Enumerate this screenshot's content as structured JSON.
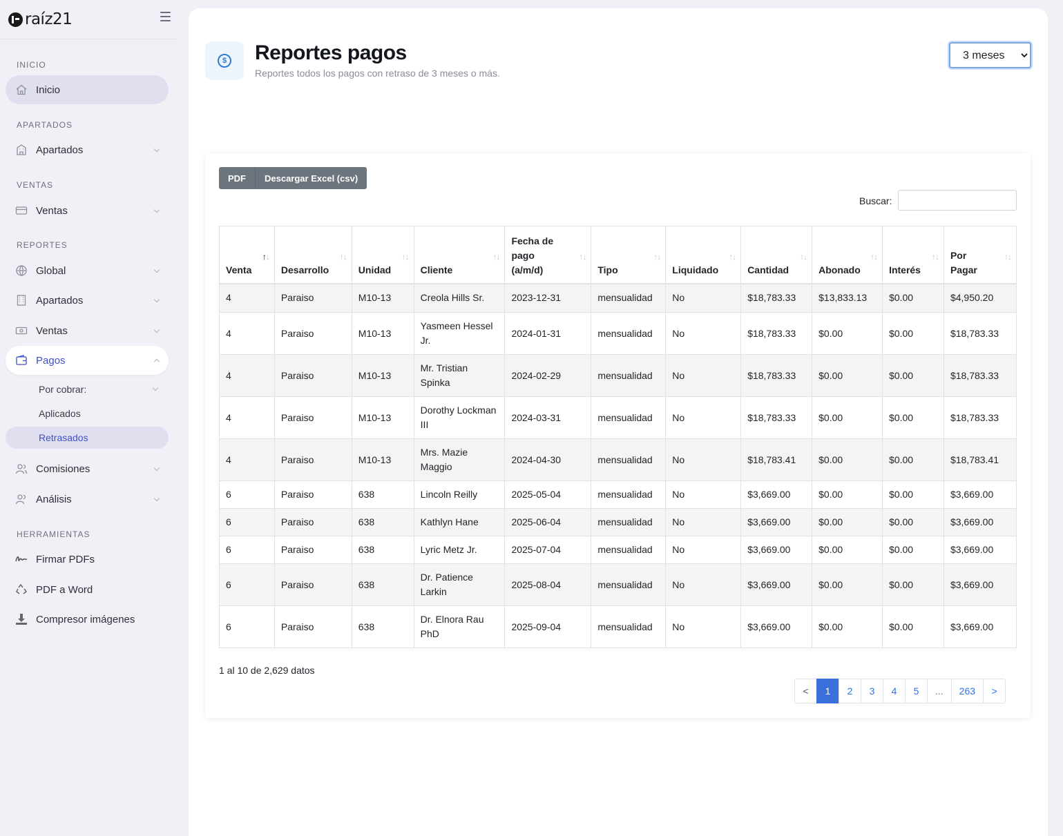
{
  "brand": {
    "name": "raíz21"
  },
  "sidebar": {
    "sections": {
      "inicio": "INICIO",
      "apartados": "APARTADOS",
      "ventas": "VENTAS",
      "reportes": "REPORTES",
      "herramientas": "HERRAMIENTAS"
    },
    "items": {
      "inicio": "Inicio",
      "apartados": "Apartados",
      "ventas": "Ventas",
      "global": "Global",
      "rep_apartados": "Apartados",
      "rep_ventas": "Ventas",
      "pagos": "Pagos",
      "por_cobrar": "Por cobrar:",
      "aplicados": "Aplicados",
      "retrasados": "Retrasados",
      "comisiones": "Comisiones",
      "analisis": "Análisis",
      "firmar_pdfs": "Firmar PDFs",
      "pdf_word": "PDF a Word",
      "compresor": "Compresor imágenes"
    }
  },
  "header": {
    "title": "Reportes pagos",
    "subtitle": "Reportes todos los pagos con retraso de 3 meses o más.",
    "period_select": "3 meses"
  },
  "toolbar": {
    "pdf_label": "PDF",
    "csv_label": "Descargar Excel (csv)",
    "search_label": "Buscar:"
  },
  "table": {
    "columns": [
      "Venta",
      "Desarrollo",
      "Unidad",
      "Cliente",
      "Fecha de pago (a/m/d)",
      "Tipo",
      "Liquidado",
      "Cantidad",
      "Abonado",
      "Interés",
      "Por Pagar"
    ],
    "rows": [
      [
        "4",
        "Paraiso",
        "M10-13",
        "Creola Hills Sr.",
        "2023-12-31",
        "mensualidad",
        "No",
        "$18,783.33",
        "$13,833.13",
        "$0.00",
        "$4,950.20"
      ],
      [
        "4",
        "Paraiso",
        "M10-13",
        "Yasmeen Hessel Jr.",
        "2024-01-31",
        "mensualidad",
        "No",
        "$18,783.33",
        "$0.00",
        "$0.00",
        "$18,783.33"
      ],
      [
        "4",
        "Paraiso",
        "M10-13",
        "Mr. Tristian Spinka",
        "2024-02-29",
        "mensualidad",
        "No",
        "$18,783.33",
        "$0.00",
        "$0.00",
        "$18,783.33"
      ],
      [
        "4",
        "Paraiso",
        "M10-13",
        "Dorothy Lockman III",
        "2024-03-31",
        "mensualidad",
        "No",
        "$18,783.33",
        "$0.00",
        "$0.00",
        "$18,783.33"
      ],
      [
        "4",
        "Paraiso",
        "M10-13",
        "Mrs. Mazie Maggio",
        "2024-04-30",
        "mensualidad",
        "No",
        "$18,783.41",
        "$0.00",
        "$0.00",
        "$18,783.41"
      ],
      [
        "6",
        "Paraiso",
        "638",
        "Lincoln Reilly",
        "2025-05-04",
        "mensualidad",
        "No",
        "$3,669.00",
        "$0.00",
        "$0.00",
        "$3,669.00"
      ],
      [
        "6",
        "Paraiso",
        "638",
        "Kathlyn Hane",
        "2025-06-04",
        "mensualidad",
        "No",
        "$3,669.00",
        "$0.00",
        "$0.00",
        "$3,669.00"
      ],
      [
        "6",
        "Paraiso",
        "638",
        "Lyric Metz Jr.",
        "2025-07-04",
        "mensualidad",
        "No",
        "$3,669.00",
        "$0.00",
        "$0.00",
        "$3,669.00"
      ],
      [
        "6",
        "Paraiso",
        "638",
        "Dr. Patience Larkin",
        "2025-08-04",
        "mensualidad",
        "No",
        "$3,669.00",
        "$0.00",
        "$0.00",
        "$3,669.00"
      ],
      [
        "6",
        "Paraiso",
        "638",
        "Dr. Elnora Rau PhD",
        "2025-09-04",
        "mensualidad",
        "No",
        "$3,669.00",
        "$0.00",
        "$0.00",
        "$3,669.00"
      ]
    ]
  },
  "footer": {
    "info": "1 al 10 de 2,629 datos",
    "pages": [
      "<",
      "1",
      "2",
      "3",
      "4",
      "5",
      "...",
      "263",
      ">"
    ]
  },
  "colors": {
    "accent": "#3f51c4",
    "page_active": "#3b6fdc",
    "button": "#6c757d"
  }
}
